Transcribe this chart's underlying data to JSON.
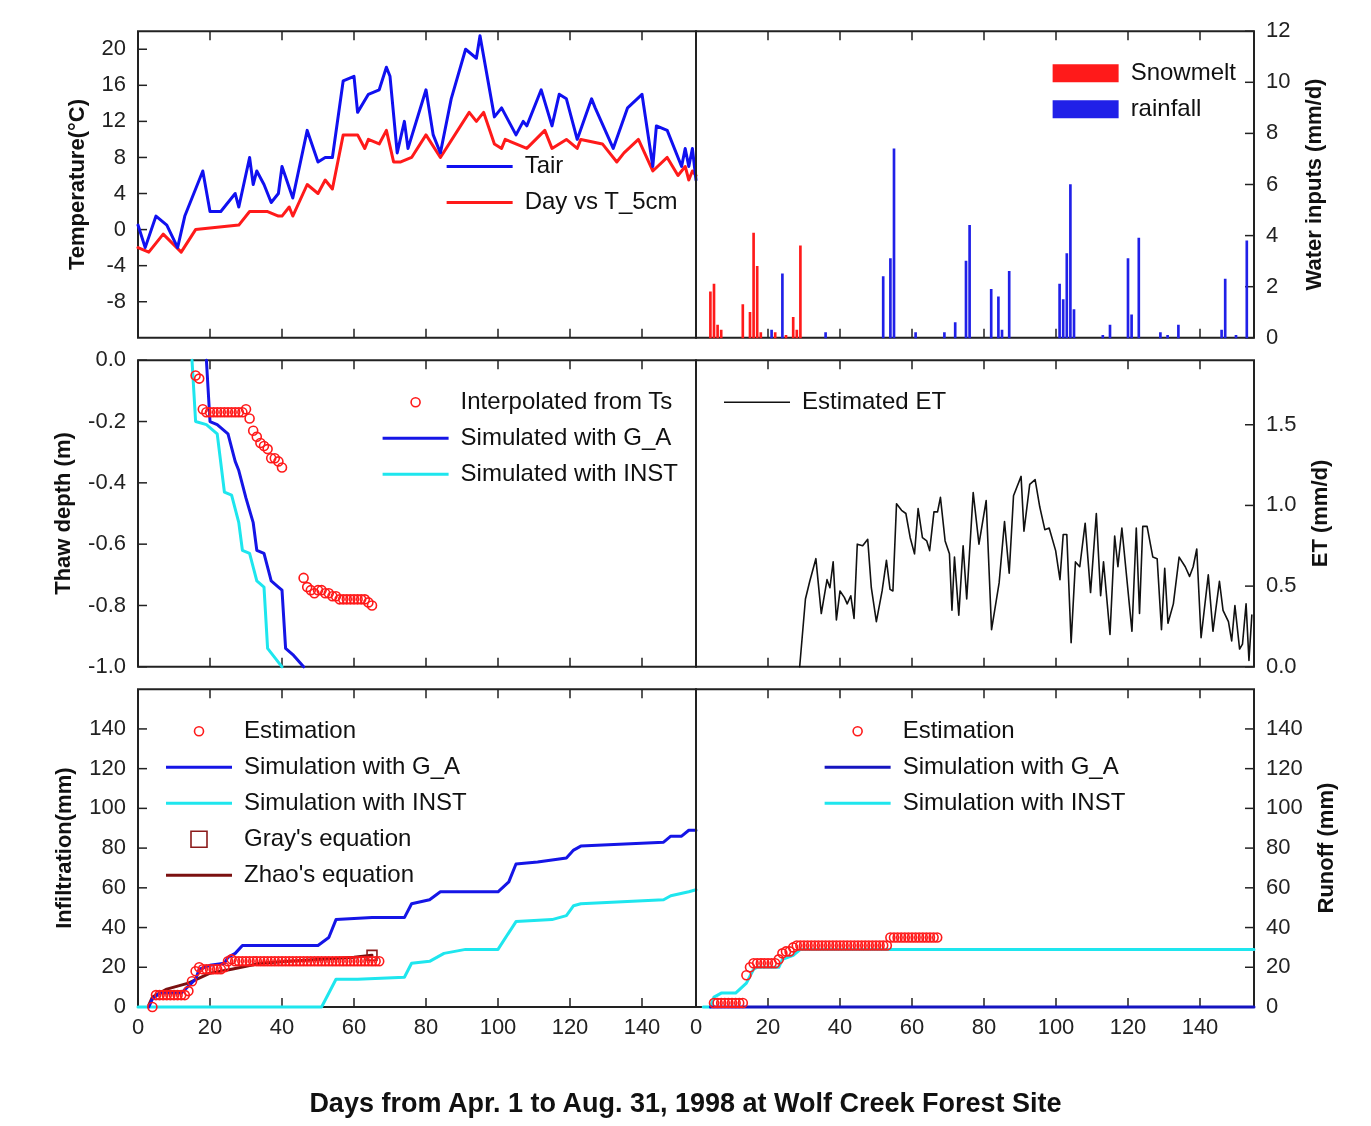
{
  "chart_data": [
    {
      "type": "line",
      "ylabel": "Temperature(°C)",
      "xlim": [
        0,
        155
      ],
      "xticks": [
        0,
        20,
        40,
        60,
        80,
        100,
        120,
        140
      ],
      "ylim": [
        -12,
        22
      ],
      "yticks": [
        -8,
        -4,
        0,
        4,
        8,
        12,
        16,
        20
      ],
      "tick_labels": "y",
      "legend": "right",
      "series": [
        {
          "name": "Tair",
          "color": "#1010f0",
          "x": [
            0,
            2,
            5,
            8,
            11,
            13,
            18,
            20,
            23,
            27,
            28,
            31,
            32,
            33,
            35,
            37,
            39,
            40,
            43,
            47,
            50,
            52,
            54,
            57,
            60,
            61,
            64,
            67,
            69,
            70,
            72,
            74,
            75,
            80,
            82,
            84,
            87,
            91,
            94,
            95,
            99,
            101,
            105,
            107,
            108,
            112,
            115,
            117,
            119,
            122,
            126,
            127,
            132,
            136,
            140,
            143,
            144,
            147,
            151,
            152,
            153,
            154,
            155
          ],
          "values": [
            0.5,
            -2,
            1.5,
            0.5,
            -2,
            1.5,
            6.5,
            2,
            2,
            4,
            2.5,
            8,
            5,
            6.5,
            5,
            3,
            4,
            7,
            3.5,
            11,
            7.5,
            8,
            8,
            16.5,
            17,
            13,
            15,
            15.5,
            18,
            17,
            8.5,
            12,
            9,
            15.5,
            10.5,
            8.5,
            14.5,
            20,
            19,
            21.5,
            12.5,
            13.5,
            10.5,
            12,
            11.5,
            15.5,
            11.5,
            15,
            14.5,
            10,
            14.5,
            13.5,
            9,
            13.5,
            15,
            7,
            11.5,
            11,
            7,
            9,
            7,
            9,
            5.5
          ]
        },
        {
          "name": "Day vs T_5cm",
          "color": "#ff1a1a",
          "x": [
            0,
            3,
            7,
            12,
            16,
            28,
            31,
            33,
            36,
            39,
            40,
            42,
            43,
            47,
            50,
            52,
            54,
            57,
            61,
            63,
            64,
            67,
            69,
            71,
            73,
            76,
            80,
            84,
            92,
            94,
            96,
            99,
            101,
            102,
            108,
            113,
            115,
            119,
            122,
            123,
            129,
            133,
            135,
            139,
            143,
            147,
            150,
            152,
            153,
            154,
            155
          ],
          "values": [
            -2,
            -2.5,
            -0.5,
            -2.5,
            0,
            0.5,
            2,
            2,
            2,
            1.5,
            1.5,
            2.5,
            1.5,
            5,
            4,
            5.5,
            4.5,
            10.5,
            10.5,
            9,
            10,
            9.5,
            11,
            7.5,
            7.5,
            8,
            10.5,
            8,
            13,
            12,
            13,
            9.5,
            9,
            10,
            9,
            11,
            9,
            10,
            9,
            10,
            9.5,
            7.5,
            8.5,
            10,
            6.5,
            8,
            6,
            7,
            5.5,
            6.5,
            6
          ]
        }
      ]
    },
    {
      "type": "bar",
      "ylabel": "Water inputs (mm/d)",
      "xlim": [
        0,
        155
      ],
      "xticks": [
        0,
        20,
        40,
        60,
        80,
        100,
        120,
        140
      ],
      "ylim": [
        0,
        12
      ],
      "yticks": [
        0,
        2,
        4,
        6,
        8,
        10,
        12
      ],
      "tick_labels": "y",
      "legend": "top right",
      "series": [
        {
          "name": "Snowmelt",
          "color": "#ff1a1a",
          "x": [
            4,
            5,
            6,
            7,
            13,
            15,
            16,
            17,
            18,
            22,
            25,
            27,
            28,
            29
          ],
          "values": [
            1.8,
            2.1,
            0.5,
            0.3,
            1.3,
            1,
            4.1,
            2.8,
            0.2,
            0.2,
            0.1,
            0.8,
            0.3,
            3.6
          ]
        },
        {
          "name": "rainfall",
          "color": "#2020e8",
          "x": [
            21,
            24,
            36,
            52,
            54,
            55,
            61,
            69,
            72,
            75,
            76,
            82,
            84,
            85,
            87,
            101,
            102,
            103,
            104,
            105,
            113,
            115,
            120,
            121,
            123,
            129,
            131,
            134,
            146,
            147,
            150,
            153
          ],
          "values": [
            0.3,
            2.5,
            0.2,
            2.4,
            3.1,
            7.4,
            0.2,
            0.2,
            0.6,
            3,
            4.4,
            1.9,
            1.6,
            0.3,
            2.6,
            2.1,
            1.5,
            3.3,
            6,
            1.1,
            0.1,
            0.5,
            3.1,
            0.9,
            3.9,
            0.2,
            0.1,
            0.5,
            0.3,
            2.3,
            0.1,
            3.8
          ]
        }
      ]
    },
    {
      "type": "line",
      "ylabel": "Thaw depth (m)",
      "xlim": [
        0,
        155
      ],
      "xticks": [
        0,
        20,
        40,
        60,
        80,
        100,
        120,
        140
      ],
      "ylim": [
        -1,
        0
      ],
      "yticks": [
        {
          "value": -1,
          "label": "-1.0"
        },
        -0.8,
        -0.6,
        -0.4,
        -0.2,
        {
          "value": 0,
          "label": "0.0"
        }
      ],
      "tick_labels": "y",
      "legend": "top right",
      "series": [
        {
          "name": "Interpolated from Ts",
          "type": "scatter",
          "marker": "circle",
          "color": "#ff1a1a",
          "x": [
            16,
            17,
            18,
            19,
            20,
            21,
            22,
            23,
            24,
            25,
            26,
            27,
            28,
            29,
            30,
            31,
            32,
            33,
            34,
            35,
            36,
            37,
            38,
            39,
            40,
            46,
            47,
            48,
            49,
            50,
            51,
            52,
            53,
            54,
            55,
            56,
            57,
            58,
            59,
            60,
            61,
            62,
            63,
            64,
            65
          ],
          "values": [
            -0.05,
            -0.06,
            -0.16,
            -0.17,
            -0.17,
            -0.17,
            -0.17,
            -0.17,
            -0.17,
            -0.17,
            -0.17,
            -0.17,
            -0.17,
            -0.17,
            -0.16,
            -0.19,
            -0.23,
            -0.25,
            -0.27,
            -0.28,
            -0.29,
            -0.32,
            -0.32,
            -0.33,
            -0.35,
            -0.71,
            -0.74,
            -0.75,
            -0.76,
            -0.75,
            -0.75,
            -0.76,
            -0.76,
            -0.77,
            -0.77,
            -0.78,
            -0.78,
            -0.78,
            -0.78,
            -0.78,
            -0.78,
            -0.78,
            -0.78,
            -0.79,
            -0.8
          ]
        },
        {
          "name": "Simulated with G_A",
          "color": "#1515e6",
          "x": [
            19,
            20,
            22,
            25,
            27,
            28,
            30,
            32,
            33,
            35,
            37,
            39,
            40,
            41,
            43,
            46
          ],
          "values": [
            0,
            -0.2,
            -0.21,
            -0.24,
            -0.33,
            -0.36,
            -0.45,
            -0.53,
            -0.62,
            -0.63,
            -0.72,
            -0.74,
            -0.75,
            -0.94,
            -0.96,
            -1
          ]
        },
        {
          "name": "Simulated with INST",
          "color": "#1ee6ee",
          "x": [
            15,
            16,
            19,
            22,
            24,
            26,
            28,
            29,
            31,
            33,
            35,
            36,
            40
          ],
          "values": [
            0,
            -0.2,
            -0.21,
            -0.24,
            -0.43,
            -0.44,
            -0.53,
            -0.62,
            -0.63,
            -0.72,
            -0.74,
            -0.94,
            -1
          ]
        }
      ]
    },
    {
      "type": "line",
      "ylabel": "ET (mm/d)",
      "xlim": [
        0,
        155
      ],
      "xticks": [
        0,
        20,
        40,
        60,
        80,
        100,
        120,
        140
      ],
      "ylim": [
        0,
        1.9
      ],
      "yticks": [
        {
          "value": 0,
          "label": "0.0"
        },
        0.5,
        {
          "value": 1,
          "label": "1.0"
        },
        1.5
      ],
      "tick_labels": "y",
      "legend": "top left",
      "series": [
        {
          "name": "Estimated ET",
          "color": "#111111",
          "x": [
            28.8,
            30.4,
            31.6,
            33.3,
            34.8,
            36.4,
            37.2,
            38.1,
            39,
            40,
            41.2,
            42,
            43,
            43.9,
            44.8,
            46.3,
            47.7,
            48.7,
            50.1,
            51.7,
            52.9,
            53.9,
            54.7,
            55.7,
            57.1,
            58.3,
            59.5,
            60.7,
            61.7,
            62.9,
            64.1,
            64.9,
            66.1,
            67.1,
            67.9,
            69.2,
            70.4,
            71.1,
            71.8,
            73,
            74.2,
            75.2,
            77,
            78.6,
            80.6,
            82.1,
            84.2,
            85.7,
            87,
            88.2,
            90.3,
            91.1,
            92.7,
            94.2,
            95.5,
            96.9,
            98.1,
            99.9,
            101.1,
            102,
            103,
            104.2,
            105.4,
            106.6,
            108.1,
            109.6,
            111.2,
            112.4,
            113.2,
            115,
            116.3,
            117.2,
            118.3,
            121.1,
            122.3,
            123.2,
            124.1,
            125.3,
            126.9,
            128.1,
            129.3,
            130.2,
            131.1,
            132.6,
            134.2,
            135.9,
            137.1,
            138.1,
            139.1,
            140.3,
            142.3,
            143.6,
            145.4,
            146.4,
            147.9,
            148.8,
            149.7,
            151,
            151.8,
            152.8,
            153.6,
            154.4
          ],
          "values": [
            0,
            0.42,
            0.53,
            0.67,
            0.33,
            0.54,
            0.49,
            0.65,
            0.29,
            0.47,
            0.43,
            0.39,
            0.44,
            0.3,
            0.76,
            0.75,
            0.79,
            0.49,
            0.28,
            0.47,
            0.66,
            0.48,
            0.47,
            1.01,
            0.97,
            0.95,
            0.8,
            0.7,
            0.98,
            0.8,
            0.78,
            0.72,
            0.96,
            0.96,
            1.05,
            0.78,
            0.7,
            0.35,
            0.68,
            0.32,
            0.75,
            0.42,
            1.08,
            0.76,
            1.03,
            0.23,
            0.52,
            0.9,
            0.58,
            1.06,
            1.18,
            0.84,
            1.13,
            1.16,
            0.99,
            0.85,
            0.86,
            0.72,
            0.54,
            0.82,
            0.82,
            0.15,
            0.65,
            0.62,
            0.89,
            0.46,
            0.95,
            0.44,
            0.65,
            0.2,
            0.81,
            0.62,
            0.86,
            0.22,
            0.86,
            0.33,
            0.87,
            0.87,
            0.68,
            0.67,
            0.23,
            0.61,
            0.27,
            0.39,
            0.68,
            0.62,
            0.56,
            0.62,
            0.73,
            0.18,
            0.57,
            0.22,
            0.53,
            0.35,
            0.28,
            0.16,
            0.38,
            0.11,
            0.14,
            0.39,
            0.04,
            0.32
          ]
        }
      ]
    },
    {
      "type": "line",
      "ylabel": "Infiltration(mm)",
      "xlabel": "Days from Apr. 1 to Aug. 31, 1998 at Wolf Creek Forest Site",
      "xlim": [
        0,
        155
      ],
      "xticks": [
        0,
        20,
        40,
        60,
        80,
        100,
        120,
        140
      ],
      "ylim": [
        0,
        160
      ],
      "yticks": [
        0,
        20,
        40,
        60,
        80,
        100,
        120,
        140
      ],
      "legend": "top left",
      "series": [
        {
          "name": "Estimation",
          "type": "scatter",
          "marker": "circle",
          "color": "#ff1a1a",
          "x": [
            4,
            5,
            6,
            7,
            8,
            9,
            10,
            11,
            12,
            13,
            14,
            15,
            16,
            17,
            18,
            19,
            20,
            21,
            22,
            23,
            24,
            25,
            26,
            27,
            28,
            29,
            30,
            31,
            32,
            33,
            34,
            35,
            36,
            37,
            38,
            39,
            40,
            41,
            42,
            43,
            44,
            45,
            46,
            47,
            48,
            49,
            50,
            51,
            52,
            53,
            54,
            55,
            56,
            57,
            58,
            59,
            60,
            61,
            62,
            63,
            64,
            65,
            66,
            67
          ],
          "values": [
            0,
            6,
            6,
            6,
            6,
            6,
            6,
            6,
            6,
            6,
            8,
            13,
            18,
            20,
            19,
            19,
            19,
            19,
            19,
            19,
            20,
            23,
            24,
            23,
            23,
            23,
            23,
            23,
            23,
            23,
            23,
            23,
            23,
            23,
            23,
            23,
            23,
            23,
            23,
            23,
            23,
            23,
            23,
            23,
            23,
            23,
            23,
            23,
            23,
            23,
            23,
            23,
            23,
            23,
            23,
            23,
            23,
            23,
            23,
            23,
            23,
            23,
            23,
            23
          ]
        },
        {
          "name": "Simulation with G_A",
          "color": "#1515e6",
          "x": [
            3,
            4,
            6,
            12,
            16,
            17,
            20,
            24,
            25,
            27,
            29,
            50,
            53,
            55,
            65,
            74,
            76,
            81,
            84,
            91,
            100,
            103,
            105,
            111,
            119,
            121,
            123,
            146,
            148,
            151,
            153,
            155
          ],
          "values": [
            0,
            4,
            7,
            7,
            14,
            19,
            21,
            22,
            25,
            27,
            31,
            31,
            35,
            44,
            45,
            45,
            52,
            54,
            58,
            58,
            58,
            63,
            72,
            73,
            75,
            79,
            81,
            83,
            86,
            86,
            89,
            89
          ]
        },
        {
          "name": "Simulation with INST",
          "color": "#1ee6ee",
          "x": [
            0,
            51,
            55,
            61,
            74,
            76,
            81,
            85,
            91,
            100,
            105,
            115,
            119,
            121,
            123,
            146,
            148,
            153,
            155
          ],
          "values": [
            0,
            0,
            14,
            14,
            15,
            22,
            23,
            27,
            29,
            29,
            43,
            44,
            46,
            51,
            52,
            54,
            56,
            58,
            59
          ]
        },
        {
          "name": "Gray's equation",
          "type": "scatter",
          "marker": "square",
          "color": "#8b1a1a",
          "x": [
            65
          ],
          "values": [
            26
          ]
        },
        {
          "name": "Zhao's equation",
          "color": "#7b1010",
          "x": [
            3,
            4,
            8,
            14,
            20,
            26,
            34,
            42,
            51,
            60,
            65
          ],
          "values": [
            1,
            5,
            9,
            12,
            17,
            19,
            22,
            23,
            24,
            25,
            26
          ]
        }
      ]
    },
    {
      "type": "line",
      "ylabel": "Runoff (mm)",
      "xlim": [
        0,
        155
      ],
      "xticks": [
        0,
        20,
        40,
        60,
        80,
        100,
        120,
        140
      ],
      "ylim": [
        0,
        160
      ],
      "yticks": [
        0,
        20,
        40,
        60,
        80,
        100,
        120,
        140
      ],
      "legend": "top",
      "series": [
        {
          "name": "Estimation",
          "type": "scatter",
          "marker": "circle",
          "color": "#ff1a1a",
          "x": [
            5,
            6,
            7,
            8,
            9,
            10,
            11,
            12,
            13,
            14,
            15,
            16,
            17,
            18,
            19,
            20,
            21,
            22,
            23,
            24,
            25,
            26,
            27,
            28,
            29,
            30,
            31,
            32,
            33,
            34,
            35,
            36,
            37,
            38,
            39,
            40,
            41,
            42,
            43,
            44,
            45,
            46,
            47,
            48,
            49,
            50,
            51,
            52,
            53,
            54,
            55,
            56,
            57,
            58,
            59,
            60,
            61,
            62,
            63,
            64,
            65,
            66,
            67
          ],
          "values": [
            2,
            2,
            2,
            2,
            2,
            2,
            2,
            2,
            2,
            16,
            20,
            22,
            22,
            22,
            22,
            22,
            22,
            22,
            24,
            27,
            28,
            28,
            30,
            31,
            31,
            31,
            31,
            31,
            31,
            31,
            31,
            31,
            31,
            31,
            31,
            31,
            31,
            31,
            31,
            31,
            31,
            31,
            31,
            31,
            31,
            31,
            31,
            31,
            31,
            35,
            35,
            35,
            35,
            35,
            35,
            35,
            35,
            35,
            35,
            35,
            35,
            35,
            35
          ]
        },
        {
          "name": "Simulation with G_A",
          "color": "#1515c0",
          "x": [
            4,
            155
          ],
          "values": [
            0,
            0
          ]
        },
        {
          "name": "Simulation with INST",
          "color": "#1ee6ee",
          "x": [
            2,
            4,
            5,
            7,
            11,
            14,
            16,
            17,
            23,
            24,
            27,
            29,
            155
          ],
          "values": [
            0,
            0,
            5,
            7,
            7,
            12,
            19,
            20,
            20,
            24,
            26,
            29,
            29
          ]
        }
      ]
    }
  ]
}
